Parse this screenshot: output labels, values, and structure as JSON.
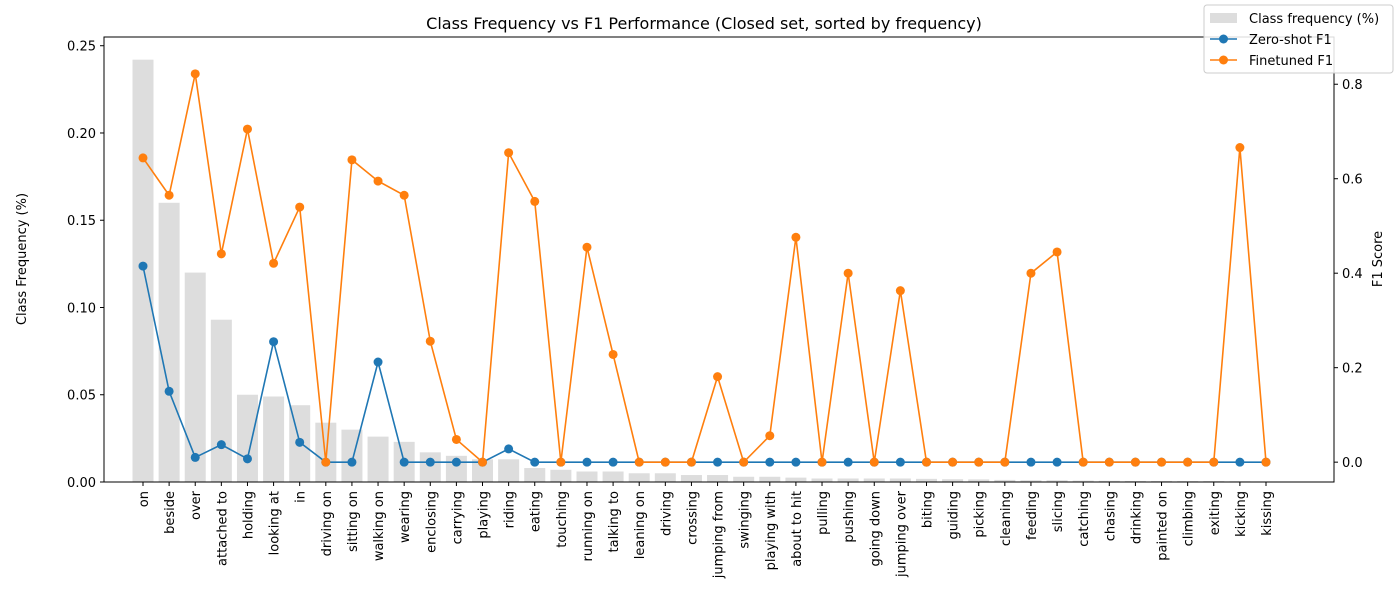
{
  "chart_data": {
    "type": "bar+line",
    "title": "Class Frequency vs F1 Performance (Closed set, sorted by frequency)",
    "ylabel": "Class Frequency (%)",
    "y2label": "F1 Score",
    "ylim": [
      0,
      0.255
    ],
    "y2lim": [
      -0.042,
      0.9
    ],
    "yticks": [
      0.0,
      0.05,
      0.1,
      0.15,
      0.2,
      0.25
    ],
    "y2ticks": [
      0.0,
      0.2,
      0.4,
      0.6,
      0.8
    ],
    "legend_position": "top-right",
    "grid": false,
    "categories": [
      "on",
      "beside",
      "over",
      "attached to",
      "holding",
      "looking at",
      "in",
      "driving on",
      "sitting on",
      "walking on",
      "wearing",
      "enclosing",
      "carrying",
      "playing",
      "riding",
      "eating",
      "touching",
      "running on",
      "talking to",
      "leaning on",
      "driving",
      "crossing",
      "jumping from",
      "swinging",
      "playing with",
      "about to hit",
      "pulling",
      "pushing",
      "going down",
      "jumping over",
      "biting",
      "guiding",
      "picking",
      "cleaning",
      "feeding",
      "slicing",
      "catching",
      "chasing",
      "drinking",
      "painted on",
      "climbing",
      "exiting",
      "kicking",
      "kissing"
    ],
    "series": [
      {
        "name": "Class frequency (%)",
        "type": "bar",
        "axis": "left",
        "color": "#dddddd",
        "values": [
          0.242,
          0.16,
          0.12,
          0.093,
          0.05,
          0.049,
          0.044,
          0.034,
          0.03,
          0.026,
          0.023,
          0.017,
          0.015,
          0.013,
          0.013,
          0.008,
          0.007,
          0.006,
          0.006,
          0.005,
          0.005,
          0.004,
          0.004,
          0.003,
          0.003,
          0.0025,
          0.002,
          0.002,
          0.002,
          0.002,
          0.0018,
          0.0016,
          0.0015,
          0.0012,
          0.001,
          0.001,
          0.0008,
          0.0007,
          0.0006,
          0.0006,
          0.0005,
          0.0005,
          0.0004,
          0.0003
        ]
      },
      {
        "name": "Zero-shot F1",
        "type": "line",
        "axis": "right",
        "color": "#1f77b4",
        "values": [
          0.415,
          0.15,
          0.01,
          0.037,
          0.007,
          0.255,
          0.042,
          0.0,
          0.0,
          0.212,
          0.0,
          0.0,
          0.0,
          0.0,
          0.028,
          0.0,
          0.0,
          0.0,
          0.0,
          0.0,
          0.0,
          0.0,
          0.0,
          0.0,
          0.0,
          0.0,
          0.0,
          0.0,
          0.0,
          0.0,
          0.0,
          0.0,
          0.0,
          0.0,
          0.0,
          0.0,
          0.0,
          0.0,
          0.0,
          0.0,
          0.0,
          0.0,
          0.0,
          0.0
        ]
      },
      {
        "name": "Finetuned F1",
        "type": "line",
        "axis": "right",
        "color": "#ff7f0e",
        "values": [
          0.644,
          0.565,
          0.822,
          0.441,
          0.705,
          0.421,
          0.54,
          0.0,
          0.64,
          0.595,
          0.565,
          0.256,
          0.048,
          0.0,
          0.655,
          0.552,
          0.0,
          0.455,
          0.228,
          0.0,
          0.0,
          0.0,
          0.181,
          0.0,
          0.056,
          0.476,
          0.0,
          0.4,
          0.0,
          0.363,
          0.0,
          0.0,
          0.0,
          0.0,
          0.4,
          0.445,
          0.0,
          0.0,
          0.0,
          0.0,
          0.0,
          0.0,
          0.666,
          0.0
        ]
      }
    ]
  }
}
